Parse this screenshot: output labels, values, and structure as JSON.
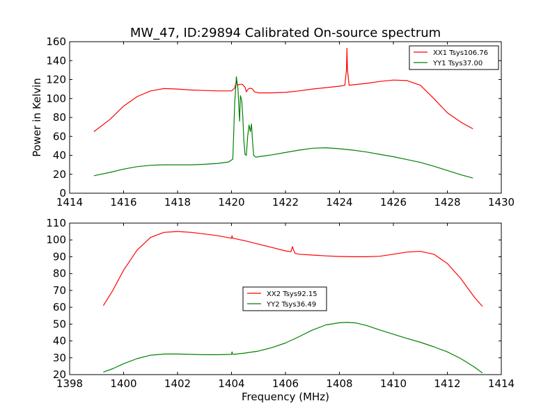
{
  "figure": {
    "title": "MW_47, ID:29894 Calibrated On-source spectrum",
    "xlabel": "Frequency (MHz)",
    "ylabel_top": "Power in Kelvin"
  },
  "colors": {
    "xx": "#ff0000",
    "yy": "#008000"
  },
  "chart_data": [
    {
      "type": "line",
      "title": "MW_47, ID:29894 Calibrated On-source spectrum",
      "xlabel": "",
      "ylabel": "Power in Kelvin",
      "xlim": [
        1414,
        1430
      ],
      "ylim": [
        0,
        160
      ],
      "xticks": [
        1414,
        1416,
        1418,
        1420,
        1422,
        1424,
        1426,
        1428,
        1430
      ],
      "yticks": [
        0,
        20,
        40,
        60,
        80,
        100,
        120,
        140,
        160
      ],
      "legend": "top-right",
      "series": [
        {
          "name": "XX1 Tsys106.76",
          "color": "#ff0000",
          "x": [
            1414.9,
            1415.5,
            1416.0,
            1416.5,
            1417.0,
            1417.5,
            1418.0,
            1418.5,
            1419.0,
            1419.5,
            1420.0,
            1420.12,
            1420.18,
            1420.22,
            1420.3,
            1420.4,
            1420.5,
            1420.55,
            1420.62,
            1420.7,
            1420.78,
            1420.85,
            1421.0,
            1421.5,
            1422.0,
            1422.5,
            1423.0,
            1423.5,
            1424.0,
            1424.2,
            1424.26,
            1424.28,
            1424.3,
            1424.36,
            1424.5,
            1425.0,
            1425.5,
            1426.0,
            1426.5,
            1427.0,
            1427.5,
            1428.0,
            1428.5,
            1428.95
          ],
          "y": [
            65,
            78,
            92,
            102,
            108,
            110.5,
            110,
            109,
            108.5,
            108,
            108,
            111,
            118,
            114,
            115,
            115,
            112,
            107,
            110,
            111,
            110,
            107,
            106,
            106,
            106.5,
            108,
            110,
            111.5,
            113,
            114,
            130,
            153,
            130,
            114,
            114.5,
            116,
            118,
            119.5,
            119,
            114,
            100,
            85,
            75,
            68
          ]
        },
        {
          "name": "YY1 Tsys37.00",
          "color": "#008000",
          "x": [
            1414.9,
            1415.5,
            1416.0,
            1416.5,
            1417.0,
            1417.5,
            1418.0,
            1418.5,
            1419.0,
            1419.5,
            1419.9,
            1420.05,
            1420.12,
            1420.18,
            1420.24,
            1420.3,
            1420.33,
            1420.38,
            1420.42,
            1420.46,
            1420.5,
            1420.55,
            1420.6,
            1420.65,
            1420.7,
            1420.74,
            1420.78,
            1420.82,
            1420.9,
            1421.0,
            1421.5,
            1422.0,
            1422.5,
            1423.0,
            1423.5,
            1424.0,
            1424.5,
            1425.0,
            1425.5,
            1426.0,
            1426.5,
            1427.0,
            1427.5,
            1428.0,
            1428.5,
            1428.95
          ],
          "y": [
            18.5,
            22,
            25.5,
            28,
            29.5,
            30,
            30,
            30,
            30.5,
            31.5,
            33,
            36,
            95,
            123,
            110,
            76,
            103,
            98,
            80,
            55,
            41,
            40,
            60,
            72,
            65,
            73,
            55,
            40,
            38,
            38.5,
            40.5,
            43,
            45.5,
            47.5,
            48,
            47,
            45.5,
            43.5,
            41,
            38.5,
            35.5,
            32.5,
            28.5,
            24,
            19.5,
            16
          ]
        }
      ]
    },
    {
      "type": "line",
      "title": "",
      "xlabel": "Frequency (MHz)",
      "ylabel": "",
      "xlim": [
        1398,
        1414
      ],
      "ylim": [
        20,
        110
      ],
      "xticks": [
        1398,
        1400,
        1402,
        1404,
        1406,
        1408,
        1410,
        1412,
        1414
      ],
      "yticks": [
        20,
        30,
        40,
        50,
        60,
        70,
        80,
        90,
        100,
        110
      ],
      "legend": "center",
      "series": [
        {
          "name": "XX2 Tsys92.15",
          "color": "#ff0000",
          "x": [
            1399.25,
            1399.6,
            1400.0,
            1400.5,
            1401.0,
            1401.5,
            1402.0,
            1402.5,
            1403.0,
            1403.5,
            1404.0,
            1404.02,
            1404.04,
            1404.06,
            1404.5,
            1405.0,
            1405.5,
            1406.0,
            1406.2,
            1406.26,
            1406.3,
            1406.36,
            1406.5,
            1407.0,
            1407.5,
            1408.0,
            1408.5,
            1409.0,
            1409.5,
            1410.0,
            1410.5,
            1411.0,
            1411.5,
            1412.0,
            1412.5,
            1413.0,
            1413.3
          ],
          "y": [
            61,
            70,
            82,
            94,
            101.5,
            104.5,
            105,
            104.5,
            103.5,
            102.5,
            101,
            102.5,
            101,
            101,
            99.5,
            97.5,
            95.5,
            93.5,
            93,
            96,
            94,
            92,
            91.5,
            91,
            90.5,
            90.2,
            90,
            90,
            90.3,
            91.5,
            92.8,
            93.2,
            91.5,
            86,
            77,
            66,
            60.5
          ]
        },
        {
          "name": "YY2 Tsys36.49",
          "color": "#008000",
          "x": [
            1399.25,
            1399.6,
            1400.0,
            1400.5,
            1401.0,
            1401.5,
            1402.0,
            1402.5,
            1403.0,
            1403.5,
            1404.0,
            1404.02,
            1404.04,
            1404.06,
            1404.5,
            1405.0,
            1405.5,
            1406.0,
            1406.5,
            1407.0,
            1407.5,
            1408.0,
            1408.3,
            1408.6,
            1409.0,
            1409.5,
            1410.0,
            1410.5,
            1411.0,
            1411.5,
            1412.0,
            1412.5,
            1413.0,
            1413.3
          ],
          "y": [
            21.5,
            23.5,
            26.5,
            29.5,
            31.5,
            32.2,
            32.2,
            32,
            31.8,
            31.8,
            32,
            33.5,
            32.2,
            32,
            32.8,
            34,
            36,
            38.8,
            42.5,
            46.5,
            49.5,
            50.8,
            51,
            50.7,
            49.2,
            46.5,
            44,
            41.5,
            39.2,
            36.5,
            33.5,
            29.5,
            24.5,
            21
          ]
        }
      ]
    }
  ]
}
